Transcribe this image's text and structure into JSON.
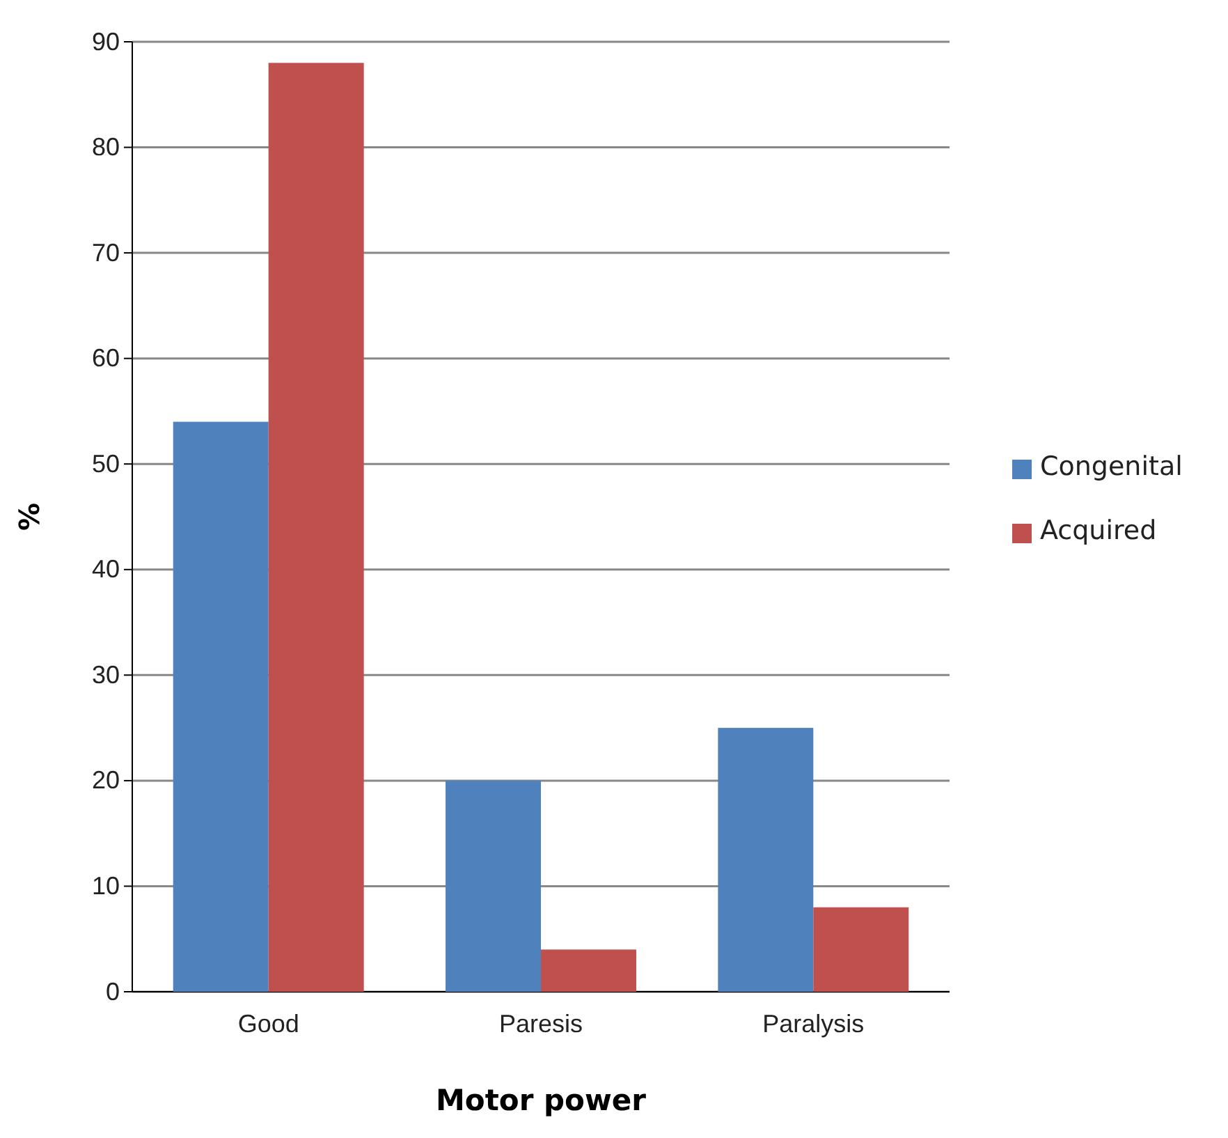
{
  "chart_data": {
    "type": "bar",
    "xlabel": "Motor power",
    "ylabel": "%",
    "categories": [
      "Good",
      "Paresis",
      "Paralysis"
    ],
    "series": [
      {
        "name": "Congenital",
        "color": "#4f81bd",
        "values": [
          54,
          20,
          25
        ]
      },
      {
        "name": "Acquired",
        "color": "#c0504d",
        "values": [
          88,
          4,
          8
        ]
      }
    ],
    "ylim": [
      0,
      90
    ],
    "yticks": [
      0,
      10,
      20,
      30,
      40,
      50,
      60,
      70,
      80,
      90
    ],
    "grid": "y",
    "legend": "right"
  }
}
